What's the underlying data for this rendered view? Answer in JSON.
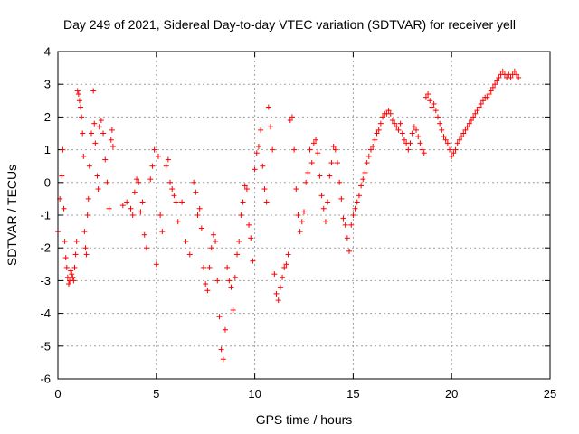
{
  "chart_data": {
    "type": "scatter",
    "title": "Day 249 of 2021, Sidereal Day-to-day VTEC variation (SDTVAR) for receiver yell",
    "xlabel": "GPS time / hours",
    "ylabel": "SDTVAR / TECUs",
    "xlim": [
      0,
      25
    ],
    "ylim": [
      -6,
      4
    ],
    "xticks": [
      0,
      5,
      10,
      15,
      20,
      25
    ],
    "yticks": [
      -6,
      -5,
      -4,
      -3,
      -2,
      -1,
      0,
      1,
      2,
      3,
      4
    ],
    "grid": true,
    "marker": "+",
    "color": "#ff0000",
    "series": [
      {
        "name": "SDTVAR",
        "points": [
          [
            0.0,
            -1.5
          ],
          [
            0.1,
            -0.5
          ],
          [
            0.2,
            0.2
          ],
          [
            0.25,
            1.0
          ],
          [
            0.3,
            -0.8
          ],
          [
            0.35,
            -1.8
          ],
          [
            0.4,
            -2.3
          ],
          [
            0.45,
            -2.6
          ],
          [
            0.5,
            -2.9
          ],
          [
            0.55,
            -3.1
          ],
          [
            0.6,
            -3.0
          ],
          [
            0.65,
            -2.7
          ],
          [
            0.7,
            -2.8
          ],
          [
            0.75,
            -2.9
          ],
          [
            0.8,
            -3.0
          ],
          [
            0.85,
            -2.6
          ],
          [
            0.9,
            -2.2
          ],
          [
            0.95,
            -1.8
          ],
          [
            1.0,
            2.8
          ],
          [
            1.05,
            2.7
          ],
          [
            1.1,
            2.5
          ],
          [
            1.15,
            2.3
          ],
          [
            1.2,
            2.0
          ],
          [
            1.25,
            1.5
          ],
          [
            1.3,
            0.8
          ],
          [
            1.35,
            -1.5
          ],
          [
            1.4,
            -2.0
          ],
          [
            1.45,
            -2.2
          ],
          [
            1.5,
            -1.0
          ],
          [
            1.55,
            -0.5
          ],
          [
            1.6,
            0.5
          ],
          [
            1.7,
            1.5
          ],
          [
            1.8,
            2.8
          ],
          [
            1.85,
            1.8
          ],
          [
            1.9,
            1.2
          ],
          [
            2.0,
            0.2
          ],
          [
            2.05,
            -0.2
          ],
          [
            2.1,
            1.7
          ],
          [
            2.2,
            1.9
          ],
          [
            2.3,
            1.5
          ],
          [
            2.4,
            0.7
          ],
          [
            2.5,
            0.0
          ],
          [
            2.6,
            -0.8
          ],
          [
            2.7,
            1.3
          ],
          [
            2.75,
            1.6
          ],
          [
            2.8,
            1.1
          ],
          [
            3.3,
            -0.7
          ],
          [
            3.5,
            -0.6
          ],
          [
            3.7,
            -0.8
          ],
          [
            3.8,
            -1.0
          ],
          [
            3.9,
            -0.3
          ],
          [
            4.0,
            0.1
          ],
          [
            4.1,
            0.0
          ],
          [
            4.2,
            -0.9
          ],
          [
            4.3,
            -0.6
          ],
          [
            4.4,
            -1.6
          ],
          [
            4.5,
            -2.0
          ],
          [
            4.7,
            0.1
          ],
          [
            4.8,
            0.5
          ],
          [
            4.9,
            1.0
          ],
          [
            5.0,
            -2.5
          ],
          [
            5.1,
            0.8
          ],
          [
            5.2,
            -1.0
          ],
          [
            5.3,
            -1.5
          ],
          [
            5.5,
            0.5
          ],
          [
            5.6,
            0.7
          ],
          [
            5.7,
            0.0
          ],
          [
            5.8,
            -0.2
          ],
          [
            5.9,
            -0.4
          ],
          [
            6.0,
            -0.6
          ],
          [
            6.1,
            -1.2
          ],
          [
            6.3,
            -0.6
          ],
          [
            6.5,
            -1.8
          ],
          [
            6.7,
            -2.2
          ],
          [
            6.9,
            0.0
          ],
          [
            7.0,
            -0.3
          ],
          [
            7.1,
            -1.0
          ],
          [
            7.2,
            -0.8
          ],
          [
            7.3,
            -1.4
          ],
          [
            7.4,
            -2.6
          ],
          [
            7.5,
            -3.1
          ],
          [
            7.6,
            -3.3
          ],
          [
            7.7,
            -2.6
          ],
          [
            7.8,
            -2.0
          ],
          [
            7.9,
            -1.6
          ],
          [
            8.0,
            -1.8
          ],
          [
            8.1,
            -3.0
          ],
          [
            8.2,
            -4.1
          ],
          [
            8.3,
            -5.1
          ],
          [
            8.4,
            -5.4
          ],
          [
            8.5,
            -4.5
          ],
          [
            8.6,
            -2.6
          ],
          [
            8.7,
            -3.0
          ],
          [
            8.8,
            -3.2
          ],
          [
            8.9,
            -3.9
          ],
          [
            9.0,
            -2.9
          ],
          [
            9.1,
            -2.2
          ],
          [
            9.2,
            -1.8
          ],
          [
            9.3,
            -1.0
          ],
          [
            9.4,
            -0.6
          ],
          [
            9.5,
            -0.1
          ],
          [
            9.6,
            -0.2
          ],
          [
            9.7,
            -1.3
          ],
          [
            9.8,
            -1.7
          ],
          [
            9.9,
            -2.4
          ],
          [
            10.0,
            0.4
          ],
          [
            10.1,
            0.9
          ],
          [
            10.2,
            1.1
          ],
          [
            10.3,
            1.6
          ],
          [
            10.4,
            0.5
          ],
          [
            10.5,
            -0.2
          ],
          [
            10.6,
            -0.6
          ],
          [
            10.7,
            2.3
          ],
          [
            10.8,
            1.7
          ],
          [
            10.9,
            1.0
          ],
          [
            11.0,
            -2.8
          ],
          [
            11.1,
            -3.4
          ],
          [
            11.2,
            -3.6
          ],
          [
            11.3,
            -3.2
          ],
          [
            11.4,
            -2.9
          ],
          [
            11.5,
            -2.6
          ],
          [
            11.6,
            -2.5
          ],
          [
            11.7,
            -2.2
          ],
          [
            11.8,
            1.9
          ],
          [
            11.9,
            2.0
          ],
          [
            12.0,
            1.0
          ],
          [
            12.1,
            -0.2
          ],
          [
            12.2,
            -1.0
          ],
          [
            12.3,
            -1.5
          ],
          [
            12.4,
            -1.2
          ],
          [
            12.5,
            -0.9
          ],
          [
            12.6,
            0.0
          ],
          [
            12.7,
            0.3
          ],
          [
            12.8,
            1.0
          ],
          [
            12.9,
            0.6
          ],
          [
            13.0,
            1.2
          ],
          [
            13.1,
            1.3
          ],
          [
            13.2,
            0.9
          ],
          [
            13.3,
            0.2
          ],
          [
            13.4,
            -0.4
          ],
          [
            13.5,
            -0.8
          ],
          [
            13.6,
            -1.2
          ],
          [
            13.7,
            -0.6
          ],
          [
            13.8,
            0.2
          ],
          [
            13.9,
            0.6
          ],
          [
            14.0,
            1.1
          ],
          [
            14.1,
            1.0
          ],
          [
            14.2,
            0.6
          ],
          [
            14.3,
            0.0
          ],
          [
            14.4,
            -0.5
          ],
          [
            14.5,
            -1.1
          ],
          [
            14.6,
            -1.3
          ],
          [
            14.7,
            -1.7
          ],
          [
            14.8,
            -2.1
          ],
          [
            14.9,
            -1.3
          ],
          [
            15.0,
            -1.0
          ],
          [
            15.1,
            -0.8
          ],
          [
            15.2,
            -0.6
          ],
          [
            15.3,
            -0.4
          ],
          [
            15.4,
            -0.1
          ],
          [
            15.5,
            0.1
          ],
          [
            15.6,
            0.3
          ],
          [
            15.7,
            0.6
          ],
          [
            15.8,
            0.8
          ],
          [
            15.9,
            1.0
          ],
          [
            16.0,
            1.1
          ],
          [
            16.1,
            1.3
          ],
          [
            16.2,
            1.5
          ],
          [
            16.3,
            1.6
          ],
          [
            16.4,
            1.8
          ],
          [
            16.5,
            2.0
          ],
          [
            16.6,
            2.1
          ],
          [
            16.7,
            2.1
          ],
          [
            16.8,
            2.2
          ],
          [
            16.9,
            2.1
          ],
          [
            17.0,
            1.9
          ],
          [
            17.1,
            1.8
          ],
          [
            17.2,
            1.7
          ],
          [
            17.3,
            1.6
          ],
          [
            17.4,
            1.8
          ],
          [
            17.5,
            1.5
          ],
          [
            17.6,
            1.3
          ],
          [
            17.7,
            1.2
          ],
          [
            17.8,
            1.0
          ],
          [
            17.9,
            1.2
          ],
          [
            18.0,
            1.5
          ],
          [
            18.1,
            1.7
          ],
          [
            18.2,
            1.6
          ],
          [
            18.3,
            1.4
          ],
          [
            18.4,
            1.2
          ],
          [
            18.5,
            1.0
          ],
          [
            18.6,
            0.9
          ],
          [
            18.7,
            2.6
          ],
          [
            18.8,
            2.7
          ],
          [
            18.9,
            2.5
          ],
          [
            19.0,
            2.3
          ],
          [
            19.1,
            2.4
          ],
          [
            19.2,
            2.2
          ],
          [
            19.3,
            2.0
          ],
          [
            19.4,
            1.8
          ],
          [
            19.5,
            1.6
          ],
          [
            19.6,
            1.4
          ],
          [
            19.7,
            1.3
          ],
          [
            19.8,
            1.2
          ],
          [
            19.9,
            1.0
          ],
          [
            20.0,
            0.8
          ],
          [
            20.1,
            0.9
          ],
          [
            20.2,
            1.0
          ],
          [
            20.3,
            1.2
          ],
          [
            20.4,
            1.3
          ],
          [
            20.5,
            1.4
          ],
          [
            20.6,
            1.5
          ],
          [
            20.7,
            1.6
          ],
          [
            20.8,
            1.7
          ],
          [
            20.9,
            1.8
          ],
          [
            21.0,
            1.9
          ],
          [
            21.1,
            2.0
          ],
          [
            21.2,
            2.1
          ],
          [
            21.3,
            2.2
          ],
          [
            21.4,
            2.3
          ],
          [
            21.5,
            2.4
          ],
          [
            21.6,
            2.5
          ],
          [
            21.7,
            2.6
          ],
          [
            21.8,
            2.6
          ],
          [
            21.9,
            2.7
          ],
          [
            22.0,
            2.8
          ],
          [
            22.1,
            2.9
          ],
          [
            22.2,
            3.0
          ],
          [
            22.3,
            3.1
          ],
          [
            22.4,
            3.2
          ],
          [
            22.5,
            3.3
          ],
          [
            22.6,
            3.4
          ],
          [
            22.7,
            3.3
          ],
          [
            22.8,
            3.2
          ],
          [
            22.9,
            3.3
          ],
          [
            23.0,
            3.2
          ],
          [
            23.1,
            3.3
          ],
          [
            23.2,
            3.4
          ],
          [
            23.3,
            3.3
          ],
          [
            23.4,
            3.2
          ]
        ]
      }
    ]
  }
}
